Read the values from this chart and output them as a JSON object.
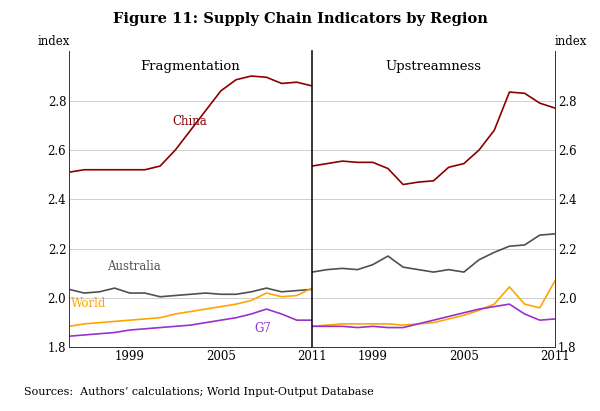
{
  "title": "Figure 11: Supply Chain Indicators by Region",
  "subtitle_left": "Fragmentation",
  "subtitle_right": "Upstreamness",
  "ylabel": "index",
  "ylim": [
    1.8,
    3.0
  ],
  "yticks": [
    1.8,
    2.0,
    2.2,
    2.4,
    2.6,
    2.8
  ],
  "ytick_labels": [
    "1.8",
    "2.0",
    "2.2",
    "2.4",
    "2.6",
    "2.8"
  ],
  "source_text": "Sources:  Authors’ calculations; World Input-Output Database",
  "years_frag": [
    1995,
    1996,
    1997,
    1998,
    1999,
    2000,
    2001,
    2002,
    2003,
    2004,
    2005,
    2006,
    2007,
    2008,
    2009,
    2010,
    2011
  ],
  "years_ups": [
    1995,
    1996,
    1997,
    1998,
    1999,
    2000,
    2001,
    2002,
    2003,
    2004,
    2005,
    2006,
    2007,
    2008,
    2009,
    2010,
    2011
  ],
  "frag_china": [
    2.51,
    2.52,
    2.52,
    2.52,
    2.52,
    2.52,
    2.535,
    2.6,
    2.68,
    2.76,
    2.84,
    2.885,
    2.9,
    2.895,
    2.87,
    2.875,
    2.86
  ],
  "frag_australia": [
    2.035,
    2.02,
    2.025,
    2.04,
    2.02,
    2.02,
    2.005,
    2.01,
    2.015,
    2.02,
    2.015,
    2.015,
    2.025,
    2.04,
    2.025,
    2.03,
    2.035
  ],
  "frag_world": [
    1.885,
    1.895,
    1.9,
    1.905,
    1.91,
    1.915,
    1.92,
    1.935,
    1.945,
    1.955,
    1.965,
    1.975,
    1.99,
    2.02,
    2.005,
    2.01,
    2.04
  ],
  "frag_g7": [
    1.845,
    1.85,
    1.855,
    1.86,
    1.87,
    1.875,
    1.88,
    1.885,
    1.89,
    1.9,
    1.91,
    1.92,
    1.935,
    1.955,
    1.935,
    1.91,
    1.91
  ],
  "ups_china": [
    2.535,
    2.545,
    2.555,
    2.55,
    2.55,
    2.525,
    2.46,
    2.47,
    2.475,
    2.53,
    2.545,
    2.6,
    2.68,
    2.835,
    2.83,
    2.79,
    2.77
  ],
  "ups_australia": [
    2.105,
    2.115,
    2.12,
    2.115,
    2.135,
    2.17,
    2.125,
    2.115,
    2.105,
    2.115,
    2.105,
    2.155,
    2.185,
    2.21,
    2.215,
    2.255,
    2.26
  ],
  "ups_world": [
    1.885,
    1.89,
    1.895,
    1.895,
    1.895,
    1.895,
    1.89,
    1.895,
    1.9,
    1.915,
    1.93,
    1.95,
    1.975,
    2.045,
    1.975,
    1.96,
    2.07
  ],
  "ups_g7": [
    1.885,
    1.885,
    1.885,
    1.88,
    1.885,
    1.88,
    1.88,
    1.895,
    1.91,
    1.925,
    1.94,
    1.955,
    1.965,
    1.975,
    1.935,
    1.91,
    1.915
  ],
  "color_china": "#8B0000",
  "color_australia": "#505050",
  "color_world": "#FFA500",
  "color_g7": "#9932CC",
  "linewidth": 1.2,
  "xticks": [
    1999,
    2005,
    2011
  ],
  "xlim": [
    1995,
    2011
  ]
}
